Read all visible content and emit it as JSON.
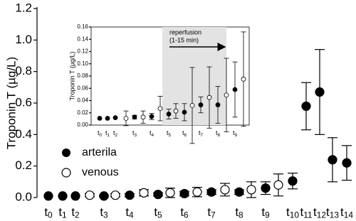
{
  "chart_data": [
    {
      "type": "dot",
      "ylabel": "Troponin T (µg/L)",
      "categories": [
        "t0",
        "t1",
        "t2",
        "t3",
        "t4",
        "t5",
        "t6",
        "t7",
        "t8",
        "t9",
        "t10",
        "t11",
        "t12",
        "t13",
        "t14"
      ],
      "ylim": [
        0,
        1.2
      ],
      "yticks": [
        {
          "value": 0,
          "label": "0.0"
        },
        0.2,
        0.4,
        0.6,
        0.8,
        {
          "value": 1,
          "label": "1.0"
        },
        1.2
      ],
      "series": [
        {
          "name": "arterila",
          "color": "#000000",
          "filled": true,
          "values": [
            0.01,
            0.01,
            0.01,
            0.01,
            0.015,
            0.02,
            0.025,
            0.035,
            0.035,
            0.06,
            0.105,
            0.58,
            0.67,
            0.24,
            0.22
          ],
          "errors": [
            null,
            null,
            null,
            0.005,
            0.01,
            0.01,
            0.015,
            0.015,
            0.015,
            0.04,
            0.05,
            0.15,
            0.27,
            0.14,
            0.11
          ]
        },
        {
          "name": "venous",
          "color": "#000000",
          "filled": false,
          "values": [
            null,
            null,
            null,
            0.015,
            0.015,
            0.03,
            0.03,
            0.035,
            0.05,
            0.05,
            0.08,
            null,
            null,
            null,
            null
          ],
          "errors": [
            null,
            null,
            null,
            0.01,
            0.01,
            0.02,
            0.03,
            0.03,
            0.04,
            0.05,
            0.07,
            null,
            null,
            null,
            null
          ]
        }
      ]
    },
    {
      "type": "dot",
      "ylabel": "Troponin T (µg/L)",
      "annotations": [
        "reperfusion",
        "(1-15 min)"
      ],
      "categories": [
        "t0",
        "t1",
        "t2",
        "t3",
        "t4",
        "t5",
        "t6",
        "t7",
        "t8",
        "t9",
        null
      ],
      "ylim": [
        0,
        0.16
      ],
      "yticks": [
        {
          "value": 0,
          "label": "0.00"
        },
        0.02,
        0.04,
        0.06,
        0.08,
        {
          "value": 0.1,
          "label": "0.10"
        },
        0.12,
        0.14,
        0.16
      ],
      "series": [
        {
          "color": "#000000",
          "filled": true,
          "values": [
            0.011,
            0.011,
            0.012,
            0.013,
            0.014,
            0.018,
            0.021,
            0.033,
            0.033,
            0.058,
            null
          ],
          "errors": [
            null,
            null,
            null,
            0.003,
            0.005,
            0.008,
            0.014,
            0.013,
            0.03,
            0.045,
            null
          ]
        },
        {
          "color": "#000000",
          "filled": false,
          "values": [
            null,
            null,
            null,
            0.011,
            0.013,
            0.027,
            0.023,
            0.032,
            0.045,
            0.049,
            0.075
          ],
          "errors": [
            null,
            null,
            null,
            0.012,
            0.01,
            0.02,
            0.012,
            0.062,
            0.05,
            0.06,
            0.077
          ]
        }
      ]
    }
  ]
}
